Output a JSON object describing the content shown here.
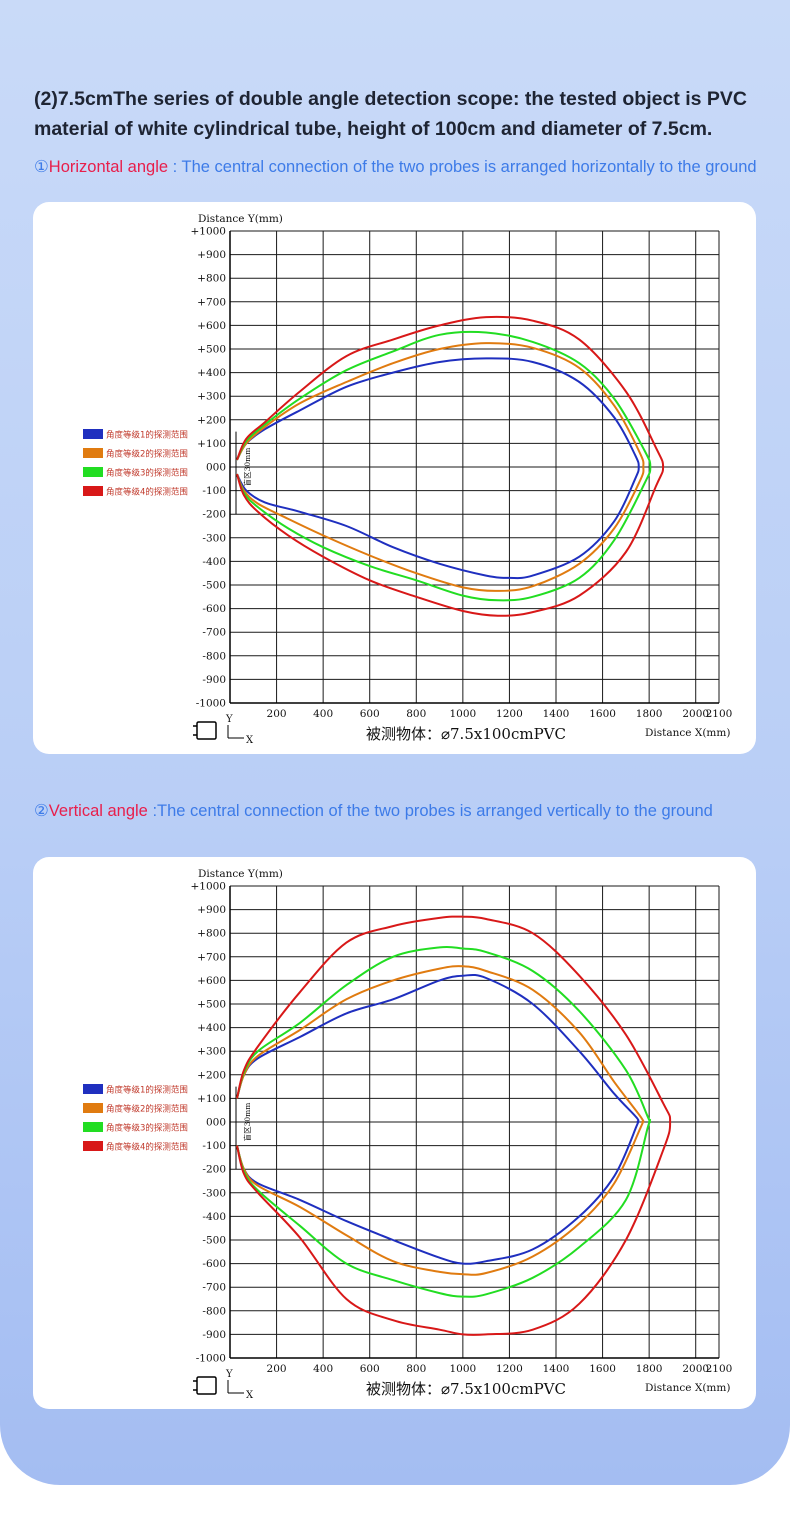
{
  "heading": "(2)7.5cmThe series of double angle detection scope: the tested object is PVC material of white cylindrical tube, height of 100cm and diameter of 7.5cm.",
  "sections": [
    {
      "num": "①",
      "label": "Horizontal angle",
      "desc": " : The central connection of the two probes is arranged horizontally to the ground"
    },
    {
      "num": "②",
      "label": "Vertical angle",
      "desc": " :The central connection of the two probes is arranged vertically to the ground"
    }
  ],
  "colors": {
    "blue": "#1f2fbf",
    "orange": "#e07b10",
    "green": "#22dd22",
    "red": "#d81818",
    "grid": "#1a1a1a"
  },
  "chart_data": [
    {
      "type": "line",
      "title": "被测物体：⌀7.5x100cmPVC",
      "xlabel": "Distance X(mm)",
      "ylabel": "Distance Y(mm)",
      "xlim": [
        0,
        2100
      ],
      "ylim": [
        -1000,
        1000
      ],
      "x_ticks": [
        "200",
        "400",
        "600",
        "800",
        "1000",
        "1200",
        "1400",
        "1600",
        "1800",
        "2000",
        "2100"
      ],
      "y_ticks": [
        "+1000",
        "+900",
        "+800",
        "+700",
        "+600",
        "+500",
        "+400",
        "+300",
        "+200",
        "+100",
        "000",
        "-100",
        "-200",
        "-300",
        "-400",
        "-500",
        "-600",
        "-700",
        "-800",
        "-900",
        "-1000"
      ],
      "dead_zone_label": "盲区30mm",
      "axis_marks": {
        "y": "Y",
        "x": "X"
      },
      "legend": [
        "角度等级1的探测范围",
        "角度等级2的探测范围",
        "角度等级3的探测范围",
        "角度等级4的探测范围"
      ],
      "series": [
        {
          "name": "角度等级1的探测范围",
          "color": "#1f2fbf",
          "x": [
            30,
            70,
            150,
            300,
            500,
            700,
            900,
            1100,
            1300,
            1500,
            1650,
            1740,
            1755,
            1740,
            1650,
            1500,
            1300,
            1200,
            1100,
            900,
            700,
            500,
            300,
            150,
            70,
            30
          ],
          "y": [
            30,
            100,
            160,
            240,
            340,
            400,
            445,
            460,
            445,
            360,
            210,
            50,
            0,
            -50,
            -230,
            -380,
            -460,
            -470,
            -460,
            -410,
            -340,
            -250,
            -190,
            -150,
            -100,
            -30
          ]
        },
        {
          "name": "角度等级2的探测范围",
          "color": "#e07b10",
          "x": [
            30,
            70,
            150,
            300,
            500,
            700,
            900,
            1100,
            1300,
            1500,
            1650,
            1760,
            1775,
            1760,
            1650,
            1500,
            1300,
            1150,
            1000,
            800,
            600,
            400,
            250,
            120,
            60,
            30
          ],
          "y": [
            30,
            100,
            170,
            270,
            360,
            440,
            500,
            525,
            505,
            420,
            260,
            60,
            0,
            -60,
            -260,
            -410,
            -505,
            -525,
            -510,
            -450,
            -375,
            -290,
            -220,
            -155,
            -100,
            -30
          ]
        },
        {
          "name": "角度等级3的探测范围",
          "color": "#22dd22",
          "x": [
            30,
            70,
            150,
            300,
            500,
            700,
            900,
            1100,
            1300,
            1500,
            1650,
            1780,
            1805,
            1780,
            1650,
            1500,
            1300,
            1150,
            1000,
            800,
            600,
            400,
            250,
            120,
            60,
            30
          ],
          "y": [
            30,
            110,
            180,
            290,
            410,
            490,
            560,
            570,
            530,
            440,
            290,
            70,
            0,
            -70,
            -310,
            -470,
            -550,
            -565,
            -545,
            -480,
            -420,
            -340,
            -260,
            -170,
            -110,
            -30
          ]
        },
        {
          "name": "角度等级4的探测范围",
          "color": "#d81818",
          "x": [
            30,
            70,
            150,
            300,
            500,
            700,
            900,
            1100,
            1300,
            1500,
            1700,
            1830,
            1860,
            1830,
            1700,
            1500,
            1300,
            1150,
            1000,
            800,
            600,
            400,
            250,
            120,
            60,
            30
          ],
          "y": [
            30,
            120,
            190,
            320,
            470,
            540,
            600,
            635,
            620,
            540,
            320,
            80,
            0,
            -80,
            -360,
            -545,
            -615,
            -630,
            -610,
            -550,
            -480,
            -380,
            -290,
            -190,
            -120,
            -30
          ]
        }
      ]
    },
    {
      "type": "line",
      "title": "被测物体：⌀7.5x100cmPVC",
      "xlabel": "Distance X(mm)",
      "ylabel": "Distance Y(mm)",
      "xlim": [
        0,
        2100
      ],
      "ylim": [
        -1000,
        1000
      ],
      "x_ticks": [
        "200",
        "400",
        "600",
        "800",
        "1000",
        "1200",
        "1400",
        "1600",
        "1800",
        "2000",
        "2100"
      ],
      "y_ticks": [
        "+1000",
        "+900",
        "+800",
        "+700",
        "+600",
        "+500",
        "+400",
        "+300",
        "+200",
        "+100",
        "000",
        "-100",
        "-200",
        "-300",
        "-400",
        "-500",
        "-600",
        "-700",
        "-800",
        "-900",
        "-1000"
      ],
      "dead_zone_label": "盲区30mm",
      "axis_marks": {
        "y": "Y",
        "x": "X"
      },
      "legend": [
        "角度等级1的探测范围",
        "角度等级2的探测范围",
        "角度等级3的探测范围",
        "角度等级4的探测范围"
      ],
      "series": [
        {
          "name": "角度等级1的探测范围",
          "color": "#1f2fbf",
          "x": [
            30,
            60,
            120,
            300,
            500,
            700,
            900,
            1000,
            1100,
            1300,
            1500,
            1650,
            1745,
            1750,
            1745,
            1650,
            1500,
            1300,
            1100,
            1000,
            900,
            700,
            500,
            300,
            120,
            60,
            30
          ],
          "y": [
            100,
            200,
            270,
            360,
            460,
            520,
            600,
            620,
            610,
            500,
            300,
            120,
            20,
            0,
            -20,
            -230,
            -400,
            -540,
            -590,
            -600,
            -575,
            -500,
            -420,
            -330,
            -260,
            -200,
            -100
          ]
        },
        {
          "name": "角度等级2的探测范围",
          "color": "#e07b10",
          "x": [
            30,
            60,
            120,
            300,
            500,
            700,
            900,
            1000,
            1100,
            1300,
            1500,
            1650,
            1765,
            1770,
            1765,
            1650,
            1500,
            1300,
            1100,
            1000,
            900,
            700,
            500,
            300,
            120,
            60,
            30
          ],
          "y": [
            100,
            200,
            280,
            390,
            520,
            600,
            650,
            660,
            640,
            560,
            380,
            170,
            20,
            0,
            -20,
            -260,
            -430,
            -570,
            -640,
            -645,
            -635,
            -590,
            -480,
            -360,
            -270,
            -200,
            -100
          ]
        },
        {
          "name": "角度等级3的探测范围",
          "color": "#22dd22",
          "x": [
            30,
            60,
            120,
            300,
            500,
            700,
            900,
            1000,
            1100,
            1300,
            1500,
            1700,
            1795,
            1800,
            1795,
            1700,
            1500,
            1300,
            1100,
            1000,
            900,
            700,
            500,
            300,
            120,
            60,
            30
          ],
          "y": [
            100,
            210,
            300,
            420,
            580,
            700,
            740,
            735,
            720,
            640,
            470,
            220,
            20,
            0,
            -20,
            -330,
            -530,
            -660,
            -730,
            -740,
            -725,
            -670,
            -600,
            -440,
            -290,
            -210,
            -100
          ]
        },
        {
          "name": "角度等级4的探测范围",
          "color": "#d81818",
          "x": [
            30,
            60,
            120,
            300,
            500,
            700,
            900,
            1000,
            1100,
            1300,
            1500,
            1700,
            1860,
            1890,
            1860,
            1700,
            1500,
            1300,
            1100,
            1000,
            900,
            700,
            500,
            300,
            120,
            60,
            30
          ],
          "y": [
            100,
            220,
            320,
            550,
            760,
            830,
            865,
            870,
            860,
            800,
            620,
            370,
            80,
            0,
            -120,
            -500,
            -770,
            -880,
            -900,
            -900,
            -880,
            -840,
            -750,
            -490,
            -300,
            -220,
            -100
          ]
        }
      ]
    }
  ]
}
